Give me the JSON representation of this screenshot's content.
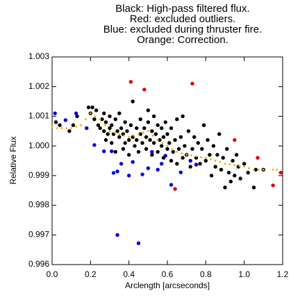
{
  "chart_data": {
    "type": "scatter",
    "title": [
      "Black: High-pass filtered flux.",
      "Red: excluded outliers.",
      "Blue: excluded during thruster fire.",
      "Orange: Correction."
    ],
    "xlabel": "Arclength [arcseconds]",
    "ylabel": "Relative Flux",
    "xlim": [
      0,
      1.2
    ],
    "ylim": [
      0.996,
      1.003
    ],
    "xticks": [
      {
        "value": 0,
        "label": "0.0"
      },
      {
        "value": 0.2,
        "label": "0.2"
      },
      {
        "value": 0.4,
        "label": "0.4"
      },
      {
        "value": 0.6,
        "label": "0.6"
      },
      {
        "value": 0.8,
        "label": "0.8"
      },
      {
        "value": 1,
        "label": "1.0"
      },
      {
        "value": 1.2,
        "label": "1.2"
      }
    ],
    "yticks": [
      0.996,
      0.997,
      0.998,
      0.999,
      {
        "value": 1,
        "label": "1.000"
      },
      1.001,
      1.002,
      1.003
    ],
    "series": [
      {
        "color": "#000000",
        "x": [
          0.02,
          0.04,
          0.09,
          0.11,
          0.13,
          0.19,
          0.2,
          0.21,
          0.22,
          0.23,
          0.24,
          0.25,
          0.26,
          0.27,
          0.27,
          0.28,
          0.28,
          0.29,
          0.3,
          0.3,
          0.31,
          0.31,
          0.32,
          0.33,
          0.33,
          0.34,
          0.35,
          0.35,
          0.36,
          0.37,
          0.37,
          0.38,
          0.38,
          0.39,
          0.4,
          0.4,
          0.41,
          0.42,
          0.42,
          0.43,
          0.44,
          0.44,
          0.45,
          0.46,
          0.46,
          0.47,
          0.48,
          0.49,
          0.49,
          0.5,
          0.5,
          0.51,
          0.52,
          0.52,
          0.53,
          0.53,
          0.54,
          0.55,
          0.55,
          0.56,
          0.57,
          0.57,
          0.58,
          0.58,
          0.59,
          0.6,
          0.6,
          0.61,
          0.62,
          0.62,
          0.63,
          0.64,
          0.65,
          0.65,
          0.66,
          0.67,
          0.68,
          0.68,
          0.69,
          0.7,
          0.71,
          0.72,
          0.73,
          0.74,
          0.75,
          0.76,
          0.77,
          0.78,
          0.79,
          0.8,
          0.81,
          0.82,
          0.83,
          0.84,
          0.85,
          0.86,
          0.87,
          0.88,
          0.89,
          0.9,
          0.91,
          0.92,
          0.93,
          0.94,
          0.95,
          0.96,
          0.97,
          0.98,
          1.0,
          1.02,
          1.05,
          1.06,
          1.1
        ],
        "y": [
          1.0008,
          1.0007,
          1.0005,
          1.0007,
          1.001,
          1.0013,
          1.0011,
          1.0013,
          1.0009,
          1.0012,
          1.0007,
          1.0006,
          1.0009,
          1.0005,
          1.0011,
          1.0002,
          1.0008,
          1.0004,
          1.0006,
          1.001,
          1.0001,
          1.0007,
          1.0004,
          1.0009,
          0.9998,
          1.0005,
          1.0003,
          1.0011,
          1.0006,
          0.9999,
          1.0004,
          1.0008,
          1.0001,
          1.0005,
          1.0002,
          0.9997,
          1.0007,
          1.0003,
          1.0015,
          1.0,
          1.0006,
          1.0002,
          0.9998,
          1.0004,
          1.0009,
          1.0001,
          1.0006,
          0.9999,
          1.0003,
          1.0008,
          1.0012,
          1.0002,
          1.0005,
          0.9997,
          1.001,
          1.0001,
          1.0004,
          0.9998,
          1.0007,
          1.0002,
          1.0,
          1.0006,
          0.9996,
          1.0003,
          1.0008,
          0.9999,
          1.0004,
          1.0001,
          0.9995,
          1.0006,
          0.9998,
          1.0002,
          0.9994,
          1.0009,
          0.9999,
          1.0003,
          0.9996,
          1.001,
          1.0,
          0.9997,
          1.0005,
          0.9993,
          0.9999,
          1.0003,
          0.9996,
          1.0001,
          0.9994,
          0.9999,
          1.0007,
          0.9995,
          1.0002,
          0.9997,
          0.999,
          1.0,
          0.9993,
          0.9997,
          1.0004,
          0.9992,
          0.9996,
          0.9986,
          0.9999,
          0.9991,
          0.9988,
          0.9995,
          0.999,
          0.9997,
          0.9993,
          0.9989,
          0.9994,
          0.9991,
          0.9986,
          0.9992,
          0.9992
        ]
      },
      {
        "color": "#e00000",
        "x": [
          0.41,
          0.48,
          0.73,
          0.95,
          1.07,
          0.64,
          1.15,
          1.19
        ],
        "y": [
          1.00216,
          1.0019,
          1.0021,
          1.0002,
          0.9996,
          0.99855,
          0.99867,
          0.9991
        ]
      },
      {
        "color": "#0000e0",
        "x": [
          0.015,
          0.07,
          0.125,
          0.18,
          0.22,
          0.27,
          0.31,
          0.36,
          0.32,
          0.34,
          0.42,
          0.4,
          0.47,
          0.5,
          0.52,
          0.57,
          0.62,
          0.67,
          0.72,
          0.75,
          0.34,
          0.45,
          0.55,
          0.59
        ],
        "y": [
          1.0011,
          1.00087,
          1.0011,
          1.0006,
          1.00003,
          0.99982,
          0.99982,
          0.9994,
          0.99909,
          0.99914,
          0.99946,
          0.999,
          0.99904,
          0.99925,
          0.9998,
          0.9994,
          0.99869,
          0.99911,
          0.9995,
          0.99937,
          0.997,
          0.99672,
          0.9992,
          0.99967
        ]
      },
      {
        "color": "#ffa500",
        "x": [
          0,
          0.025,
          0.05,
          0.075,
          0.1,
          0.125,
          0.15,
          0.175,
          0.2,
          0.225,
          0.25,
          0.275,
          0.3,
          0.325,
          0.35,
          0.375,
          0.4,
          0.425,
          0.45,
          0.475,
          0.5,
          0.525,
          0.55,
          0.575,
          0.6,
          0.625,
          0.65,
          0.675,
          0.7,
          0.725,
          0.75,
          0.775,
          0.8,
          0.825,
          0.85,
          0.875,
          0.9,
          0.925,
          0.95,
          0.975,
          1,
          1.025,
          1.05,
          1.075,
          1.1,
          1.15,
          1.17
        ],
        "y": [
          1.00065,
          1.0006,
          1.0006,
          1.0006,
          1.0006,
          1.00065,
          1.0007,
          1.0009,
          1.0011,
          1.001,
          1.0009,
          1.0007,
          1.0005,
          1.00045,
          1.0004,
          1.00035,
          1.0003,
          1.00035,
          1.0004,
          1.00045,
          1.0005,
          1.00035,
          1.0002,
          1.0001,
          1.0,
          0.9999,
          0.9998,
          0.99975,
          0.9997,
          0.99968,
          0.99965,
          0.99962,
          0.9996,
          0.99955,
          0.9995,
          0.99945,
          0.9994,
          0.99938,
          0.99935,
          0.99932,
          0.9993,
          0.99925,
          0.9992,
          0.9992,
          0.9992,
          0.9992,
          0.9992
        ]
      }
    ]
  }
}
